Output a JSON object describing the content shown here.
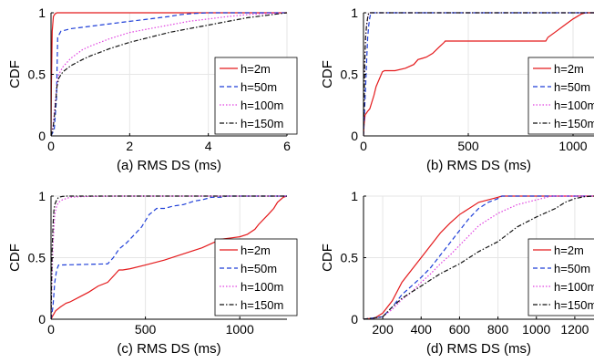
{
  "chart_data": [
    {
      "type": "line",
      "panel": "a",
      "xlabel": "(a) RMS DS (ms)",
      "ylabel": "CDF",
      "xlim": [
        0,
        6
      ],
      "ylim": [
        0,
        1
      ],
      "xticks": [
        0,
        2,
        4,
        6
      ],
      "yticks": [
        0,
        0.5,
        1
      ],
      "xtick_labels": [
        "0",
        "2",
        "4",
        "6"
      ],
      "ytick_labels": [
        "0",
        "0.5",
        "1"
      ],
      "grid": true,
      "legend": "right",
      "series": [
        {
          "name": "h=2m",
          "color": "#e41a1c",
          "dash": "solid",
          "x": [
            0,
            0.01,
            0.03,
            0.06,
            0.1,
            0.15,
            6
          ],
          "y": [
            0,
            0.4,
            0.85,
            0.97,
            0.99,
            1.0,
            1.0
          ]
        },
        {
          "name": "h=50m",
          "color": "#1f3fd8",
          "dash": "dashed",
          "x": [
            0,
            0.08,
            0.14,
            0.17,
            0.25,
            0.5,
            1,
            1.5,
            2,
            2.5,
            3,
            3.3,
            3.6,
            3.8,
            4.0,
            4.3,
            6
          ],
          "y": [
            0,
            0.05,
            0.3,
            0.8,
            0.85,
            0.87,
            0.89,
            0.91,
            0.93,
            0.95,
            0.97,
            0.985,
            0.993,
            0.997,
            1.0,
            1.0,
            1.0
          ]
        },
        {
          "name": "h=100m",
          "color": "#e040e0",
          "dash": "dotted",
          "x": [
            0,
            0.05,
            0.1,
            0.15,
            0.2,
            0.3,
            0.5,
            0.8,
            1.0,
            1.5,
            2,
            2.5,
            3,
            3.5,
            4,
            4.5,
            5,
            5.5,
            6
          ],
          "y": [
            0,
            0.08,
            0.25,
            0.42,
            0.5,
            0.56,
            0.63,
            0.7,
            0.73,
            0.79,
            0.84,
            0.87,
            0.9,
            0.93,
            0.95,
            0.97,
            0.985,
            0.995,
            1.0
          ]
        },
        {
          "name": "h=150m",
          "color": "#111111",
          "dash": "dashdot",
          "x": [
            0,
            0.05,
            0.1,
            0.15,
            0.2,
            0.3,
            0.5,
            0.8,
            1.0,
            1.5,
            2,
            2.5,
            3,
            3.5,
            4,
            4.5,
            5,
            5.5,
            6
          ],
          "y": [
            0,
            0.06,
            0.2,
            0.4,
            0.47,
            0.52,
            0.57,
            0.62,
            0.65,
            0.71,
            0.76,
            0.8,
            0.84,
            0.87,
            0.9,
            0.93,
            0.96,
            0.98,
            1.0
          ]
        }
      ]
    },
    {
      "type": "line",
      "panel": "b",
      "xlabel": "(b) RMS DS (ms)",
      "ylabel": "CDF",
      "xlim": [
        0,
        1100
      ],
      "ylim": [
        0,
        1
      ],
      "xticks": [
        0,
        500,
        1000
      ],
      "yticks": [
        0,
        0.5,
        1
      ],
      "xtick_labels": [
        "0",
        "500",
        "1000"
      ],
      "ytick_labels": [
        "0",
        "0.5",
        "1"
      ],
      "grid": true,
      "legend": "right",
      "series": [
        {
          "name": "h=2m",
          "color": "#e41a1c",
          "dash": "solid",
          "x": [
            0,
            3,
            8,
            20,
            30,
            50,
            60,
            90,
            100,
            150,
            200,
            240,
            260,
            280,
            300,
            330,
            360,
            385,
            390,
            500,
            870,
            880,
            920,
            960,
            1000,
            1040,
            1060,
            1100
          ],
          "y": [
            0,
            0.1,
            0.17,
            0.2,
            0.22,
            0.33,
            0.4,
            0.52,
            0.53,
            0.53,
            0.55,
            0.58,
            0.62,
            0.63,
            0.64,
            0.67,
            0.72,
            0.76,
            0.77,
            0.77,
            0.77,
            0.8,
            0.85,
            0.9,
            0.95,
            0.99,
            1.0,
            1.0
          ]
        },
        {
          "name": "h=50m",
          "color": "#1f3fd8",
          "dash": "dashed",
          "x": [
            0,
            5,
            10,
            15,
            20,
            25,
            30,
            35,
            1100
          ],
          "y": [
            0,
            0.2,
            0.4,
            0.6,
            0.8,
            0.9,
            0.96,
            1.0,
            1.0
          ]
        },
        {
          "name": "h=100m",
          "color": "#e040e0",
          "dash": "dotted",
          "x": [
            0,
            3,
            6,
            10,
            15,
            20,
            25,
            1100
          ],
          "y": [
            0,
            0.3,
            0.6,
            0.8,
            0.9,
            0.96,
            1.0,
            1.0
          ]
        },
        {
          "name": "h=150m",
          "color": "#111111",
          "dash": "dashdot",
          "x": [
            0,
            3,
            6,
            10,
            15,
            20,
            25,
            1100
          ],
          "y": [
            0,
            0.3,
            0.6,
            0.8,
            0.9,
            0.96,
            1.0,
            1.0
          ]
        }
      ]
    },
    {
      "type": "line",
      "panel": "c",
      "xlabel": "(c) RMS DS (ms)",
      "ylabel": "CDF",
      "xlim": [
        0,
        1250
      ],
      "ylim": [
        0,
        1
      ],
      "xticks": [
        0,
        500,
        1000
      ],
      "yticks": [
        0,
        0.5,
        1
      ],
      "xtick_labels": [
        "0",
        "500",
        "1000"
      ],
      "ytick_labels": [
        "0",
        "0.5",
        "1"
      ],
      "grid": true,
      "legend": "right",
      "series": [
        {
          "name": "h=2m",
          "color": "#e41a1c",
          "dash": "solid",
          "x": [
            0,
            10,
            25,
            50,
            80,
            100,
            150,
            200,
            250,
            300,
            360,
            380,
            420,
            500,
            600,
            700,
            800,
            900,
            1000,
            1040,
            1080,
            1100,
            1150,
            1180,
            1200,
            1230,
            1250
          ],
          "y": [
            0,
            0.03,
            0.07,
            0.1,
            0.13,
            0.14,
            0.18,
            0.22,
            0.27,
            0.3,
            0.4,
            0.4,
            0.41,
            0.44,
            0.48,
            0.53,
            0.58,
            0.65,
            0.67,
            0.69,
            0.73,
            0.77,
            0.85,
            0.9,
            0.95,
            0.99,
            1.0
          ]
        },
        {
          "name": "h=50m",
          "color": "#1f3fd8",
          "dash": "dashed",
          "x": [
            0,
            10,
            20,
            30,
            40,
            300,
            330,
            360,
            400,
            450,
            480,
            500,
            520,
            560,
            600,
            650,
            700,
            760,
            800,
            850,
            900,
            930,
            1250
          ],
          "y": [
            0,
            0.1,
            0.3,
            0.4,
            0.44,
            0.45,
            0.5,
            0.57,
            0.62,
            0.7,
            0.75,
            0.8,
            0.85,
            0.9,
            0.9,
            0.92,
            0.93,
            0.96,
            0.97,
            0.99,
            0.99,
            1.0,
            1.0
          ]
        },
        {
          "name": "h=100m",
          "color": "#e040e0",
          "dash": "dotted",
          "x": [
            0,
            5,
            10,
            20,
            30,
            40,
            60,
            80,
            100,
            150,
            200,
            300,
            350,
            1250
          ],
          "y": [
            0,
            0.3,
            0.6,
            0.85,
            0.92,
            0.95,
            0.97,
            0.98,
            0.99,
            0.995,
            0.997,
            0.999,
            1.0,
            1.0
          ]
        },
        {
          "name": "h=150m",
          "color": "#111111",
          "dash": "dashdot",
          "x": [
            0,
            3,
            6,
            10,
            15,
            20,
            30,
            40,
            60,
            80,
            1250
          ],
          "y": [
            0,
            0.3,
            0.55,
            0.75,
            0.88,
            0.93,
            0.97,
            0.99,
            0.997,
            1.0,
            1.0
          ]
        }
      ]
    },
    {
      "type": "line",
      "panel": "d",
      "xlabel": "(d) RMS DS (ms)",
      "ylabel": "CDF",
      "xlim": [
        100,
        1300
      ],
      "ylim": [
        0,
        1
      ],
      "xticks": [
        200,
        400,
        600,
        800,
        1000,
        1200
      ],
      "yticks": [
        0,
        0.5,
        1
      ],
      "xtick_labels": [
        "200",
        "400",
        "600",
        "800",
        "1000",
        "1200"
      ],
      "ytick_labels": [
        "0",
        "0.5",
        "1"
      ],
      "grid": true,
      "legend": "right",
      "series": [
        {
          "name": "h=2m",
          "color": "#e41a1c",
          "dash": "solid",
          "x": [
            100,
            160,
            200,
            250,
            300,
            350,
            400,
            450,
            500,
            550,
            600,
            650,
            700,
            750,
            800,
            820,
            1300
          ],
          "y": [
            0,
            0.01,
            0.05,
            0.15,
            0.3,
            0.4,
            0.5,
            0.6,
            0.7,
            0.78,
            0.85,
            0.9,
            0.95,
            0.97,
            0.99,
            1.0,
            1.0
          ]
        },
        {
          "name": "h=50m",
          "color": "#1f3fd8",
          "dash": "dashed",
          "x": [
            100,
            200,
            250,
            300,
            350,
            400,
            450,
            500,
            550,
            600,
            650,
            700,
            750,
            800,
            820,
            1300
          ],
          "y": [
            0,
            0.02,
            0.1,
            0.2,
            0.27,
            0.34,
            0.42,
            0.52,
            0.62,
            0.72,
            0.82,
            0.9,
            0.95,
            0.98,
            1.0,
            1.0
          ]
        },
        {
          "name": "h=100m",
          "color": "#e040e0",
          "dash": "dotted",
          "x": [
            100,
            200,
            250,
            300,
            350,
            400,
            450,
            500,
            550,
            600,
            650,
            700,
            800,
            900,
            1000,
            1080,
            1300
          ],
          "y": [
            0,
            0.02,
            0.08,
            0.16,
            0.22,
            0.3,
            0.37,
            0.45,
            0.52,
            0.6,
            0.68,
            0.76,
            0.86,
            0.93,
            0.97,
            1.0,
            1.0
          ]
        },
        {
          "name": "h=150m",
          "color": "#111111",
          "dash": "dashdot",
          "x": [
            100,
            200,
            250,
            300,
            350,
            400,
            450,
            500,
            600,
            700,
            800,
            900,
            1000,
            1100,
            1150,
            1200,
            1250,
            1300
          ],
          "y": [
            0,
            0.02,
            0.1,
            0.17,
            0.22,
            0.27,
            0.32,
            0.37,
            0.45,
            0.55,
            0.63,
            0.75,
            0.83,
            0.9,
            0.95,
            0.98,
            0.995,
            1.0
          ]
        }
      ]
    }
  ]
}
